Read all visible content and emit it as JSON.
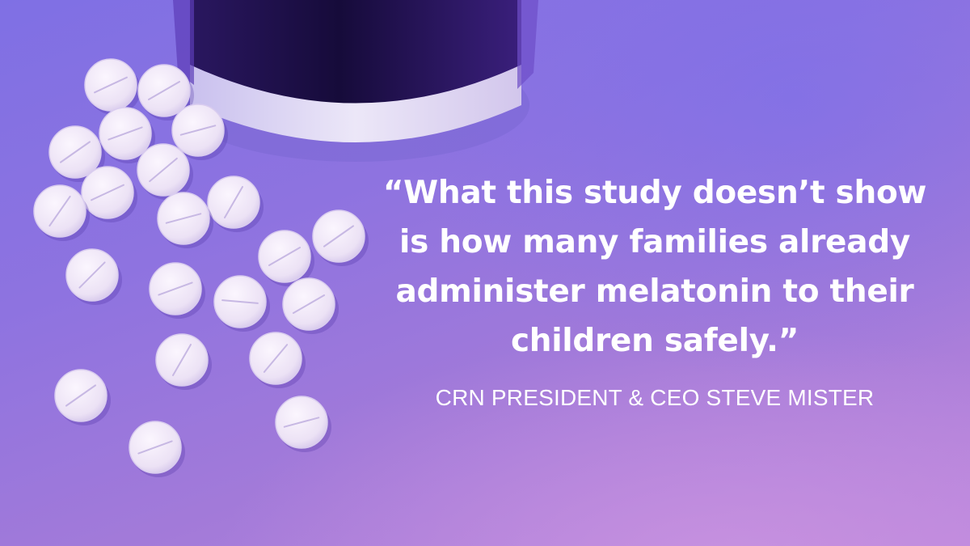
{
  "quote": {
    "text": "“What this study doesn’t show is how many families already administer melatonin to their children safely.”",
    "attribution": "CRN PRESIDENT & CEO STEVE MISTER"
  },
  "image": {
    "objects": [
      "pill-bottle",
      "white-tablets"
    ],
    "colors": {
      "background": "#8e73e0",
      "pill": "#f3eaf8",
      "text": "#ffffff"
    }
  }
}
